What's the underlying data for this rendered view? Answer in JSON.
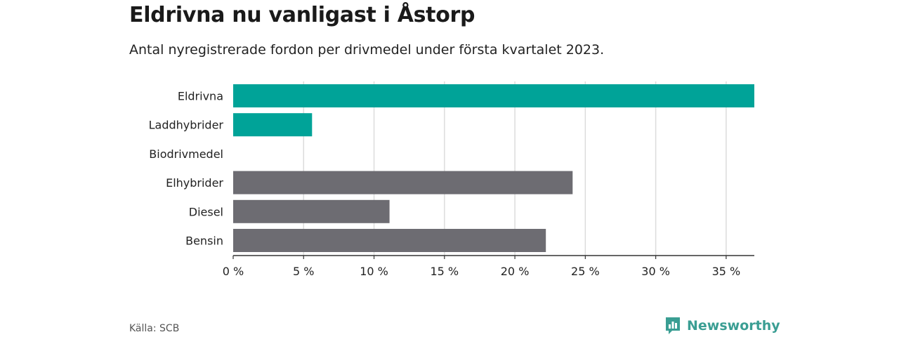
{
  "header": {
    "title": "Eldrivna nu vanligast i Åstorp",
    "subtitle": "Antal nyregistrerade fordon per drivmedel under första kvartalet 2023."
  },
  "footer": {
    "source": "Källa: SCB",
    "brand": "Newsworthy",
    "brand_icon": "bar-chart-speech-bubble-icon"
  },
  "colors": {
    "highlight": "#00A398",
    "other": "#6D6C72",
    "grid": "#dcdcdc",
    "axis": "#333333",
    "brand": "#3a9e93"
  },
  "chart_data": {
    "type": "bar",
    "orientation": "horizontal",
    "categories": [
      "Eldrivna",
      "Laddhybrider",
      "Biodrivmedel",
      "Elhybrider",
      "Diesel",
      "Bensin"
    ],
    "values": [
      37,
      5.6,
      0,
      24.1,
      11.1,
      22.2
    ],
    "groups": [
      "highlight",
      "highlight",
      "highlight",
      "other",
      "other",
      "other"
    ],
    "xlim": [
      0,
      37
    ],
    "xticks": [
      0,
      5,
      10,
      15,
      20,
      25,
      30,
      35
    ],
    "xtick_labels": [
      "0 %",
      "5 %",
      "10 %",
      "15 %",
      "20 %",
      "25 %",
      "30 %",
      "35 %"
    ],
    "grid": true,
    "xlabel": "",
    "ylabel": ""
  }
}
